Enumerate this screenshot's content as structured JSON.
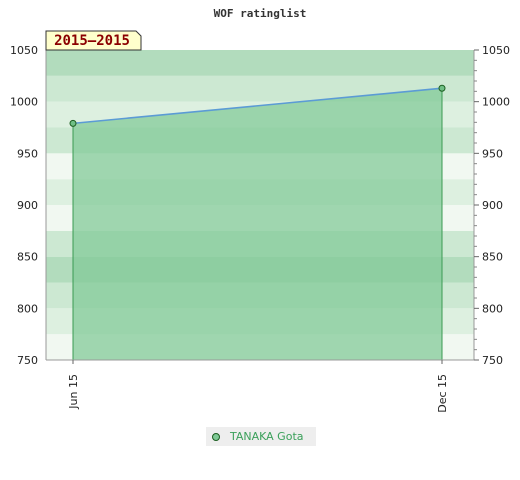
{
  "chart_data": {
    "type": "area",
    "title": "WOF ratinglist",
    "badge": "2015–2015",
    "x_categories": [
      "Jun 15",
      "Dec 15"
    ],
    "series": [
      {
        "name": "TANAKA Gota",
        "values": [
          979,
          1013
        ]
      }
    ],
    "ylim": [
      750,
      1050
    ],
    "y_ticks": [
      750,
      800,
      850,
      900,
      950,
      1000,
      1050
    ],
    "secondary_y_axis": true,
    "grid": true,
    "legend_position": "bottom",
    "colors": {
      "line": "#5b9bd5",
      "area": "#7fc996",
      "marker_fill": "#6fbf85",
      "marker_stroke": "#1b5e20",
      "badge_bg": "#ffffcc",
      "legend_text": "#3aa05a"
    }
  }
}
